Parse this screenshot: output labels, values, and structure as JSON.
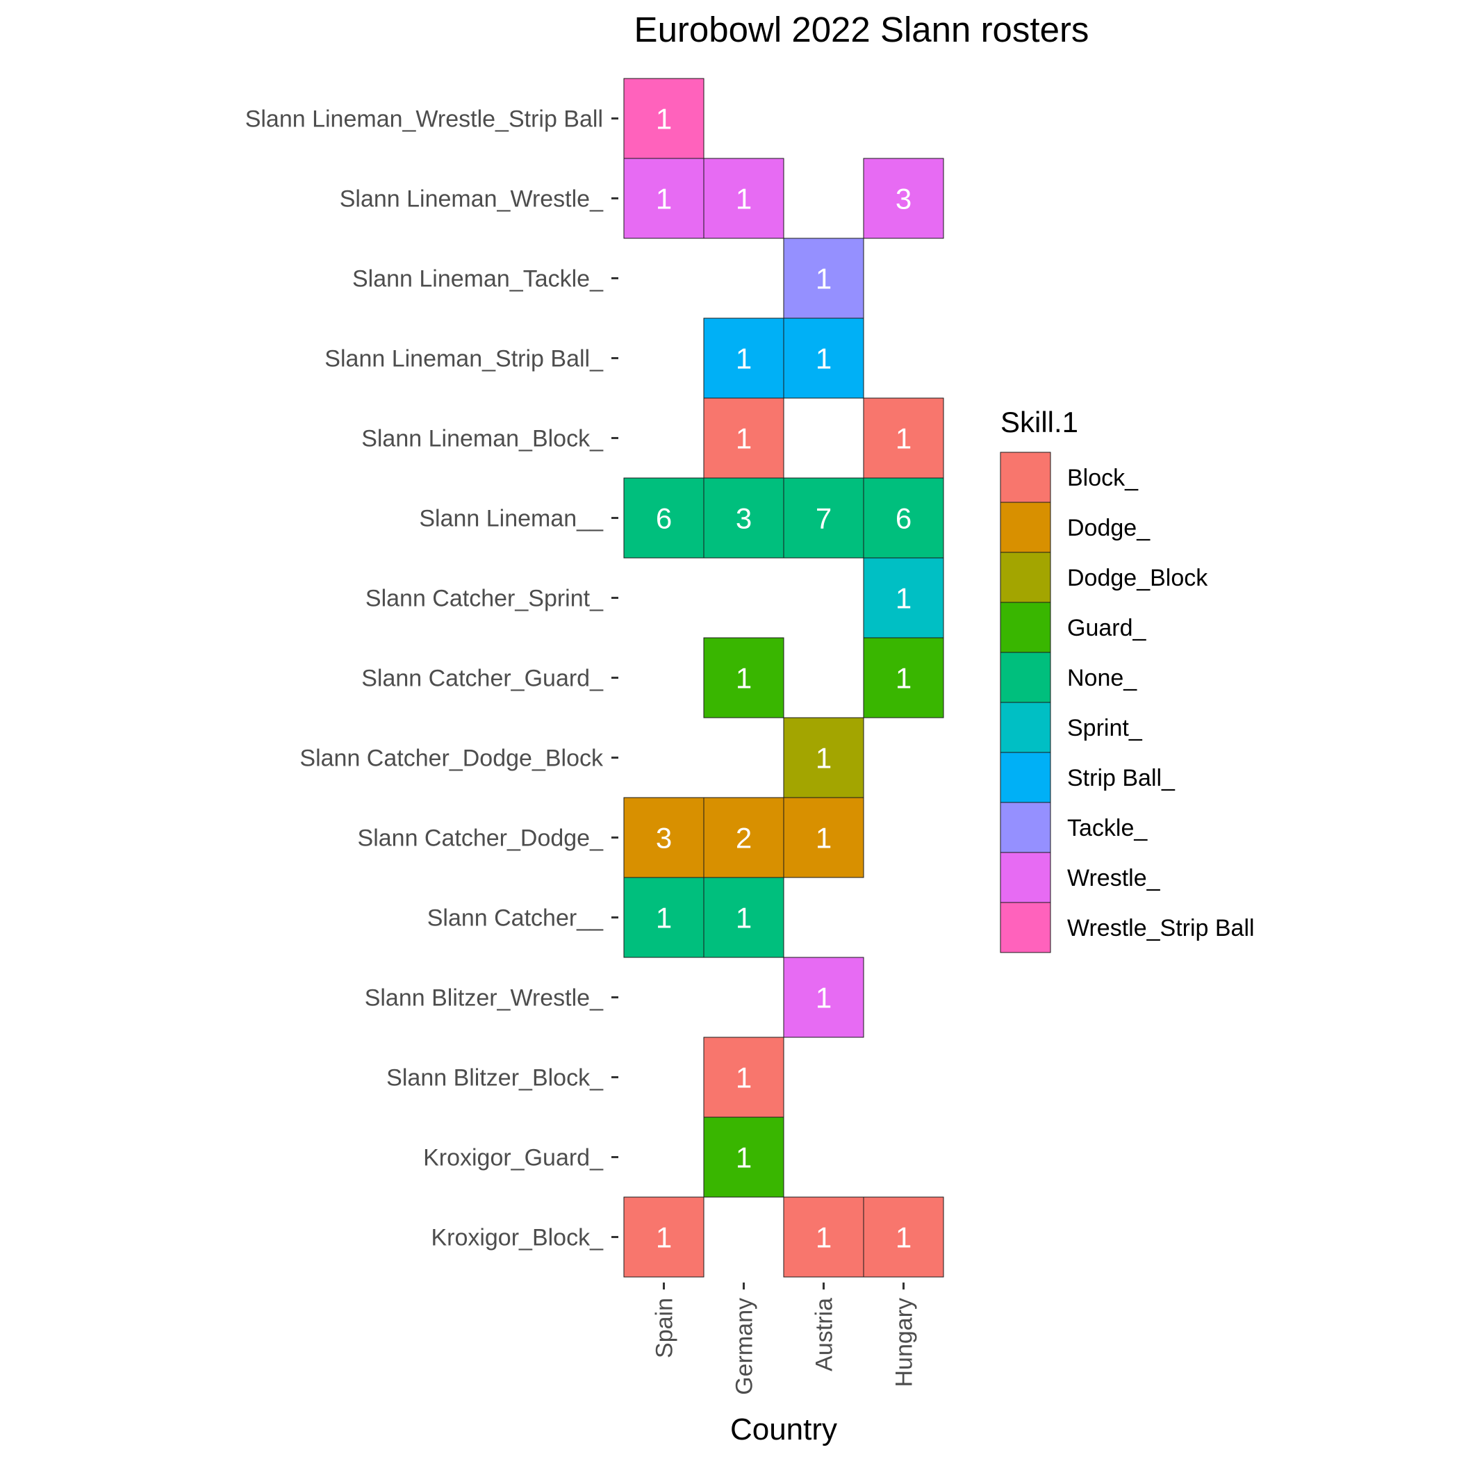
{
  "chart_data": {
    "type": "heatmap",
    "title": "Eurobowl 2022 Slann rosters",
    "xlabel": "Country",
    "ylabel": "",
    "x_categories": [
      "Spain",
      "Germany",
      "Austria",
      "Hungary"
    ],
    "y_categories": [
      "Slann Lineman_Wrestle_Strip Ball",
      "Slann Lineman_Wrestle_",
      "Slann Lineman_Tackle_",
      "Slann Lineman_Strip Ball_",
      "Slann Lineman_Block_",
      "Slann Lineman__",
      "Slann Catcher_Sprint_",
      "Slann Catcher_Guard_",
      "Slann Catcher_Dodge_Block",
      "Slann Catcher_Dodge_",
      "Slann Catcher__",
      "Slann Blitzer_Wrestle_",
      "Slann Blitzer_Block_",
      "Kroxigor_Guard_",
      "Kroxigor_Block_"
    ],
    "legend": {
      "title": "Skill.1",
      "position": "right",
      "items": [
        {
          "label": "Block_",
          "color": "#F8766D"
        },
        {
          "label": "Dodge_",
          "color": "#D89000"
        },
        {
          "label": "Dodge_Block",
          "color": "#A3A500"
        },
        {
          "label": "Guard_",
          "color": "#39B600"
        },
        {
          "label": "None_",
          "color": "#00BF7D"
        },
        {
          "label": "Sprint_",
          "color": "#00BFC4"
        },
        {
          "label": "Strip Ball_",
          "color": "#00B0F6"
        },
        {
          "label": "Tackle_",
          "color": "#9590FF"
        },
        {
          "label": "Wrestle_",
          "color": "#E76BF3"
        },
        {
          "label": "Wrestle_Strip Ball",
          "color": "#FF62BC"
        }
      ]
    },
    "cells": [
      {
        "x": "Spain",
        "y": "Slann Lineman_Wrestle_Strip Ball",
        "value": 1,
        "skill": "Wrestle_Strip Ball"
      },
      {
        "x": "Spain",
        "y": "Slann Lineman_Wrestle_",
        "value": 1,
        "skill": "Wrestle_"
      },
      {
        "x": "Germany",
        "y": "Slann Lineman_Wrestle_",
        "value": 1,
        "skill": "Wrestle_"
      },
      {
        "x": "Hungary",
        "y": "Slann Lineman_Wrestle_",
        "value": 3,
        "skill": "Wrestle_"
      },
      {
        "x": "Austria",
        "y": "Slann Lineman_Tackle_",
        "value": 1,
        "skill": "Tackle_"
      },
      {
        "x": "Germany",
        "y": "Slann Lineman_Strip Ball_",
        "value": 1,
        "skill": "Strip Ball_"
      },
      {
        "x": "Austria",
        "y": "Slann Lineman_Strip Ball_",
        "value": 1,
        "skill": "Strip Ball_"
      },
      {
        "x": "Germany",
        "y": "Slann Lineman_Block_",
        "value": 1,
        "skill": "Block_"
      },
      {
        "x": "Hungary",
        "y": "Slann Lineman_Block_",
        "value": 1,
        "skill": "Block_"
      },
      {
        "x": "Spain",
        "y": "Slann Lineman__",
        "value": 6,
        "skill": "None_"
      },
      {
        "x": "Germany",
        "y": "Slann Lineman__",
        "value": 3,
        "skill": "None_"
      },
      {
        "x": "Austria",
        "y": "Slann Lineman__",
        "value": 7,
        "skill": "None_"
      },
      {
        "x": "Hungary",
        "y": "Slann Lineman__",
        "value": 6,
        "skill": "None_"
      },
      {
        "x": "Hungary",
        "y": "Slann Catcher_Sprint_",
        "value": 1,
        "skill": "Sprint_"
      },
      {
        "x": "Germany",
        "y": "Slann Catcher_Guard_",
        "value": 1,
        "skill": "Guard_"
      },
      {
        "x": "Hungary",
        "y": "Slann Catcher_Guard_",
        "value": 1,
        "skill": "Guard_"
      },
      {
        "x": "Austria",
        "y": "Slann Catcher_Dodge_Block",
        "value": 1,
        "skill": "Dodge_Block"
      },
      {
        "x": "Spain",
        "y": "Slann Catcher_Dodge_",
        "value": 3,
        "skill": "Dodge_"
      },
      {
        "x": "Germany",
        "y": "Slann Catcher_Dodge_",
        "value": 2,
        "skill": "Dodge_"
      },
      {
        "x": "Austria",
        "y": "Slann Catcher_Dodge_",
        "value": 1,
        "skill": "Dodge_"
      },
      {
        "x": "Spain",
        "y": "Slann Catcher__",
        "value": 1,
        "skill": "None_"
      },
      {
        "x": "Germany",
        "y": "Slann Catcher__",
        "value": 1,
        "skill": "None_"
      },
      {
        "x": "Austria",
        "y": "Slann Blitzer_Wrestle_",
        "value": 1,
        "skill": "Wrestle_"
      },
      {
        "x": "Germany",
        "y": "Slann Blitzer_Block_",
        "value": 1,
        "skill": "Block_"
      },
      {
        "x": "Germany",
        "y": "Kroxigor_Guard_",
        "value": 1,
        "skill": "Guard_"
      },
      {
        "x": "Spain",
        "y": "Kroxigor_Block_",
        "value": 1,
        "skill": "Block_"
      },
      {
        "x": "Austria",
        "y": "Kroxigor_Block_",
        "value": 1,
        "skill": "Block_"
      },
      {
        "x": "Hungary",
        "y": "Kroxigor_Block_",
        "value": 1,
        "skill": "Block_"
      }
    ],
    "grid": false
  }
}
